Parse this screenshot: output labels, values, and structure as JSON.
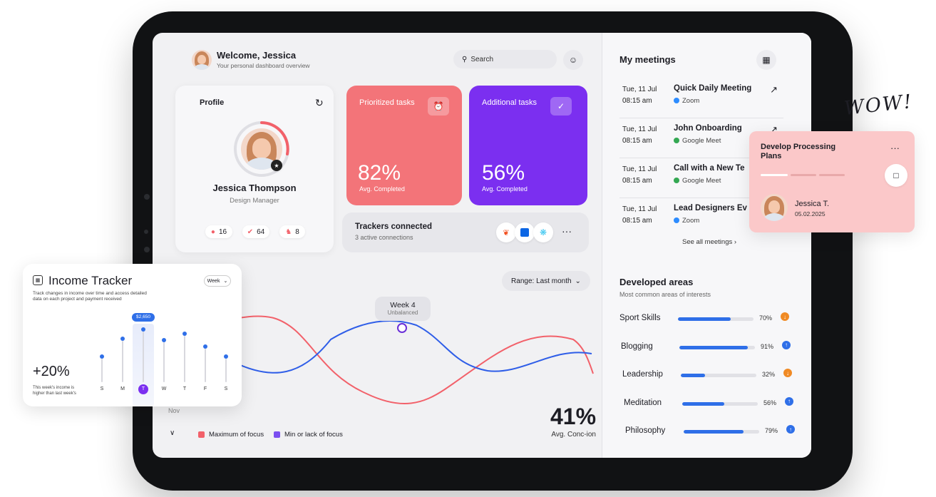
{
  "header": {
    "welcome": "Welcome, Jessica",
    "subtitle": "Your personal dashboard overview",
    "search_placeholder": "Search"
  },
  "profile": {
    "title": "Profile",
    "name": "Jessica Thompson",
    "role": "Design Manager",
    "stats": [
      "16",
      "64",
      "8"
    ]
  },
  "tasks": {
    "prioritized_title": "Prioritized tasks",
    "prioritized_value": "82%",
    "prioritized_label": "Avg. Completed",
    "additional_title": "Additional tasks",
    "additional_value": "56%",
    "additional_label": "Avg. Completed"
  },
  "trackers": {
    "title": "Trackers connected",
    "subtitle": "3 active connections",
    "more": "···"
  },
  "focus_chart": {
    "range_label": "Range: Last month",
    "week_label": "Week 4",
    "week_status": "Unbalanced",
    "x_label": "Nov",
    "big_value": "41%",
    "big_label": "Avg. Conc-ion",
    "legend": [
      "Maximum of focus",
      "Min or lack of focus"
    ],
    "colors": {
      "max": "#f2616a",
      "min": "#2f5ee8"
    }
  },
  "meetings": {
    "title": "My meetings",
    "items": [
      {
        "date": "Tue, 11 Jul",
        "time": "08:15 am",
        "name": "Quick Daily Meeting",
        "platform": "Zoom"
      },
      {
        "date": "Tue, 11 Jul",
        "time": "08:15 am",
        "name": "John Onboarding",
        "platform": "Google Meet"
      },
      {
        "date": "Tue, 11 Jul",
        "time": "08:15 am",
        "name": "Call with a New Te",
        "platform": "Google Meet"
      },
      {
        "date": "Tue, 11 Jul",
        "time": "08:15 am",
        "name": "Lead Designers Ev",
        "platform": "Zoom"
      }
    ],
    "see_all": "See all meetings"
  },
  "areas": {
    "title": "Developed areas",
    "subtitle": "Most common areas of interests",
    "items": [
      {
        "label": "Sport Skills",
        "value": "70%",
        "level": 70,
        "trend": "down"
      },
      {
        "label": "Blogging",
        "value": "91%",
        "level": 91,
        "trend": "up"
      },
      {
        "label": "Leadership",
        "value": "32%",
        "level": 32,
        "trend": "down"
      },
      {
        "label": "Meditation",
        "value": "56%",
        "level": 56,
        "trend": "up"
      },
      {
        "label": "Philosophy",
        "value": "79%",
        "level": 79,
        "trend": "up"
      }
    ],
    "colors": {
      "up": "#2f6fe8",
      "down": "#f08a24"
    }
  },
  "income": {
    "title": "Income Tracker",
    "description": "Track changes in income over time and access detailed data on each project and payment received",
    "period": "Week",
    "highlight_value": "$2,650",
    "change": "+20%",
    "change_note": "This week's income is higher than last week's",
    "days": [
      "S",
      "M",
      "T",
      "W",
      "T",
      "F",
      "S"
    ],
    "levels": [
      0.45,
      0.75,
      0.9,
      0.72,
      0.82,
      0.62,
      0.45
    ],
    "selected_day": 2
  },
  "float_card": {
    "title": "Develop Processing Plans",
    "person": "Jessica T.",
    "date": "05.02.2025",
    "more": "···"
  },
  "wow": "WOW!"
}
